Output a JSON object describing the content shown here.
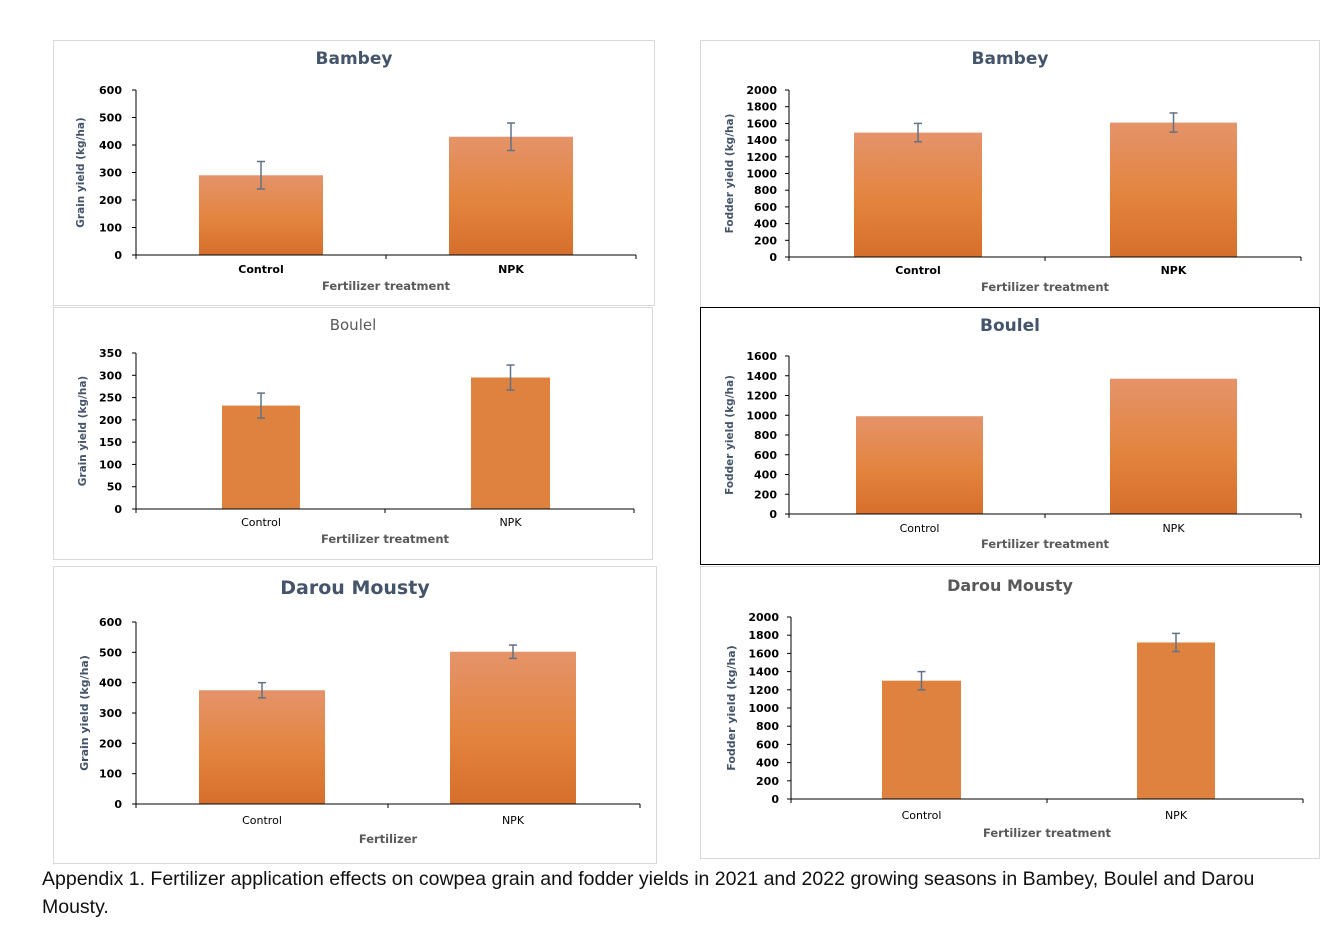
{
  "charts": [
    {
      "id": "bambey-grain",
      "chart_data": {
        "type": "bar",
        "title": "Bambey",
        "xlabel": "Fertilizer treatment",
        "ylabel": "Grain yield (kg/ha)",
        "categories": [
          "Control",
          "NPK"
        ],
        "values": [
          290,
          430
        ],
        "errors": [
          50,
          50
        ],
        "ylim": [
          0,
          600
        ],
        "yticks": [
          0,
          100,
          200,
          300,
          400,
          500,
          600
        ],
        "grid": false
      }
    },
    {
      "id": "bambey-fodder",
      "chart_data": {
        "type": "bar",
        "title": "Bambey",
        "xlabel": "Fertilizer treatment",
        "ylabel": "Fodder yield (kg/ha)",
        "categories": [
          "Control",
          "NPK"
        ],
        "values": [
          1490,
          1610
        ],
        "errors": [
          110,
          115
        ],
        "ylim": [
          0,
          2000
        ],
        "yticks": [
          0,
          200,
          400,
          600,
          800,
          1000,
          1200,
          1400,
          1600,
          1800,
          2000
        ],
        "grid": false
      }
    },
    {
      "id": "boulel-grain",
      "chart_data": {
        "type": "bar",
        "title": "Boulel",
        "xlabel": "Fertilizer treatment",
        "ylabel": "Grain yield (kg/ha)",
        "categories": [
          "Control",
          "NPK"
        ],
        "values": [
          232,
          295
        ],
        "errors": [
          28,
          28
        ],
        "ylim": [
          0,
          350
        ],
        "yticks": [
          0,
          50,
          100,
          150,
          200,
          250,
          300,
          350
        ],
        "grid": false
      }
    },
    {
      "id": "boulel-fodder",
      "chart_data": {
        "type": "bar",
        "title": "Boulel",
        "xlabel": "Fertilizer treatment",
        "ylabel": "Fodder yield (kg/ha)",
        "categories": [
          "Control",
          "NPK"
        ],
        "values": [
          990,
          1370
        ],
        "errors": [
          0,
          0
        ],
        "ylim": [
          0,
          1600
        ],
        "yticks": [
          0,
          200,
          400,
          600,
          800,
          1000,
          1200,
          1400,
          1600
        ],
        "grid": false
      }
    },
    {
      "id": "darou-grain",
      "chart_data": {
        "type": "bar",
        "title": "Darou Mousty",
        "xlabel": "Fertilizer",
        "ylabel": "Grain yield (kg/ha)",
        "categories": [
          "Control",
          "NPK"
        ],
        "values": [
          375,
          502
        ],
        "errors": [
          25,
          22
        ],
        "ylim": [
          0,
          600
        ],
        "yticks": [
          0,
          100,
          200,
          300,
          400,
          500,
          600
        ],
        "grid": false
      }
    },
    {
      "id": "darou-fodder",
      "chart_data": {
        "type": "bar",
        "title": "Darou Mousty",
        "xlabel": "Fertilizer treatment",
        "ylabel": "Fodder yield (kg/ha)",
        "categories": [
          "Control",
          "NPK"
        ],
        "values": [
          1300,
          1720
        ],
        "errors": [
          100,
          100
        ],
        "ylim": [
          0,
          2000
        ],
        "yticks": [
          0,
          200,
          400,
          600,
          800,
          1000,
          1200,
          1400,
          1600,
          1800,
          2000
        ],
        "grid": false
      }
    }
  ],
  "caption": "Appendix 1. Fertilizer application effects on cowpea grain and fodder yields in 2021 and 2022 growing seasons in Bambey, Boulel and Darou Mousty.",
  "colors": {
    "bar_top": "#e5936a",
    "bar_mid": "#e3843e",
    "bar_bottom": "#d66e2c",
    "bar_flat": "#e0823f",
    "title_dark": "#44546a",
    "title_gray": "#595959",
    "axis_text": "#000000",
    "ylabel_text": "#44546a",
    "error_bar": "#5f7287",
    "panel_border": "#d9d9d9",
    "panel_border_dark": "#000000"
  }
}
